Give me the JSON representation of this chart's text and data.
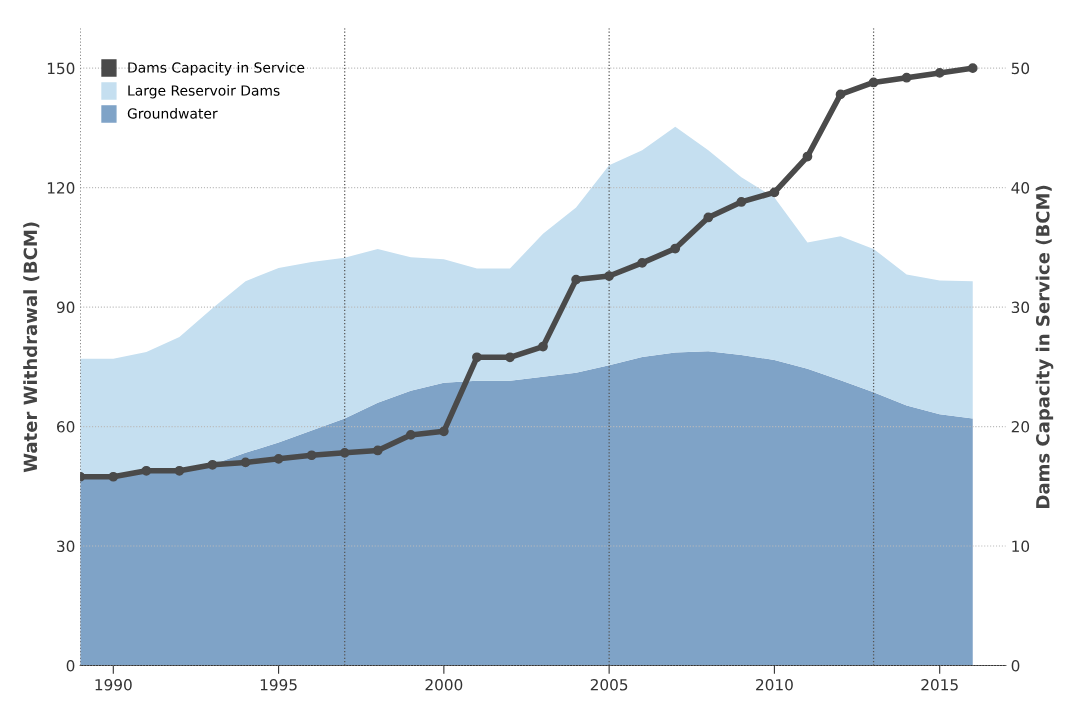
{
  "chart_data": {
    "type": "area",
    "stacked": true,
    "ylabel": "Water Withdrawal (BCM)",
    "y2label": "Dams Capacity in Service (BCM)",
    "x": [
      1989,
      1990,
      1991,
      1992,
      1993,
      1994,
      1995,
      1996,
      1997,
      1998,
      1999,
      2000,
      2001,
      2002,
      2003,
      2004,
      2005,
      2006,
      2007,
      2008,
      2009,
      2010,
      2011,
      2012,
      2013,
      2014,
      2015,
      2016
    ],
    "series": [
      {
        "name": "Groundwater",
        "color": "#7fa3c7",
        "values": [
          47.5,
          47.5,
          49,
          49,
          50.5,
          53.4,
          56,
          59,
          62,
          66,
          69,
          71,
          71.5,
          71.5,
          72.5,
          73.5,
          75.4,
          77.5,
          78.6,
          78.9,
          78,
          76.7,
          74.5,
          71.6,
          68.6,
          65.3,
          63.1,
          62
        ]
      },
      {
        "name": "Large Reservoir Dams",
        "color": "#c5dff0",
        "values": [
          29.5,
          29.5,
          29.7,
          33.5,
          39.2,
          43.1,
          43.8,
          42.3,
          40.4,
          38.6,
          33.5,
          31,
          28.2,
          28.2,
          35.9,
          41.5,
          50.2,
          51.9,
          56.7,
          50.5,
          44.6,
          40.8,
          31.7,
          36.2,
          36,
          32.9,
          33.6,
          34.5
        ]
      },
      {
        "name": "Dams Capacity in Service",
        "type": "line",
        "axis": "y2",
        "color": "#4a4a4a",
        "marker": "circle",
        "values": [
          15.8,
          15.8,
          16.3,
          16.3,
          16.8,
          17.0,
          17.3,
          17.6,
          17.8,
          18.0,
          19.3,
          19.6,
          25.8,
          25.8,
          26.7,
          32.3,
          32.6,
          33.7,
          34.9,
          37.5,
          38.8,
          39.6,
          42.6,
          47.8,
          48.8,
          49.2,
          49.6,
          50.0
        ]
      }
    ],
    "xlim": [
      1989,
      2017
    ],
    "xticks": [
      1990,
      1995,
      2000,
      2005,
      2010,
      2015
    ],
    "ylim": [
      0,
      160
    ],
    "yticks": [
      0,
      30,
      60,
      90,
      120,
      150
    ],
    "y2lim": [
      0,
      53.333
    ],
    "y2ticks": [
      0,
      10,
      20,
      30,
      40,
      50
    ],
    "grid": "y",
    "legend": "top left",
    "ref_lines": [
      {
        "axis": "x",
        "value": 1989,
        "line_style": "dotted",
        "color": "#555555"
      },
      {
        "axis": "x",
        "value": 1997,
        "line_style": "dotted",
        "color": "#555555"
      },
      {
        "axis": "x",
        "value": 2005,
        "line_style": "dotted",
        "color": "#555555"
      },
      {
        "axis": "x",
        "value": 2013,
        "line_style": "dotted",
        "color": "#555555"
      }
    ]
  }
}
